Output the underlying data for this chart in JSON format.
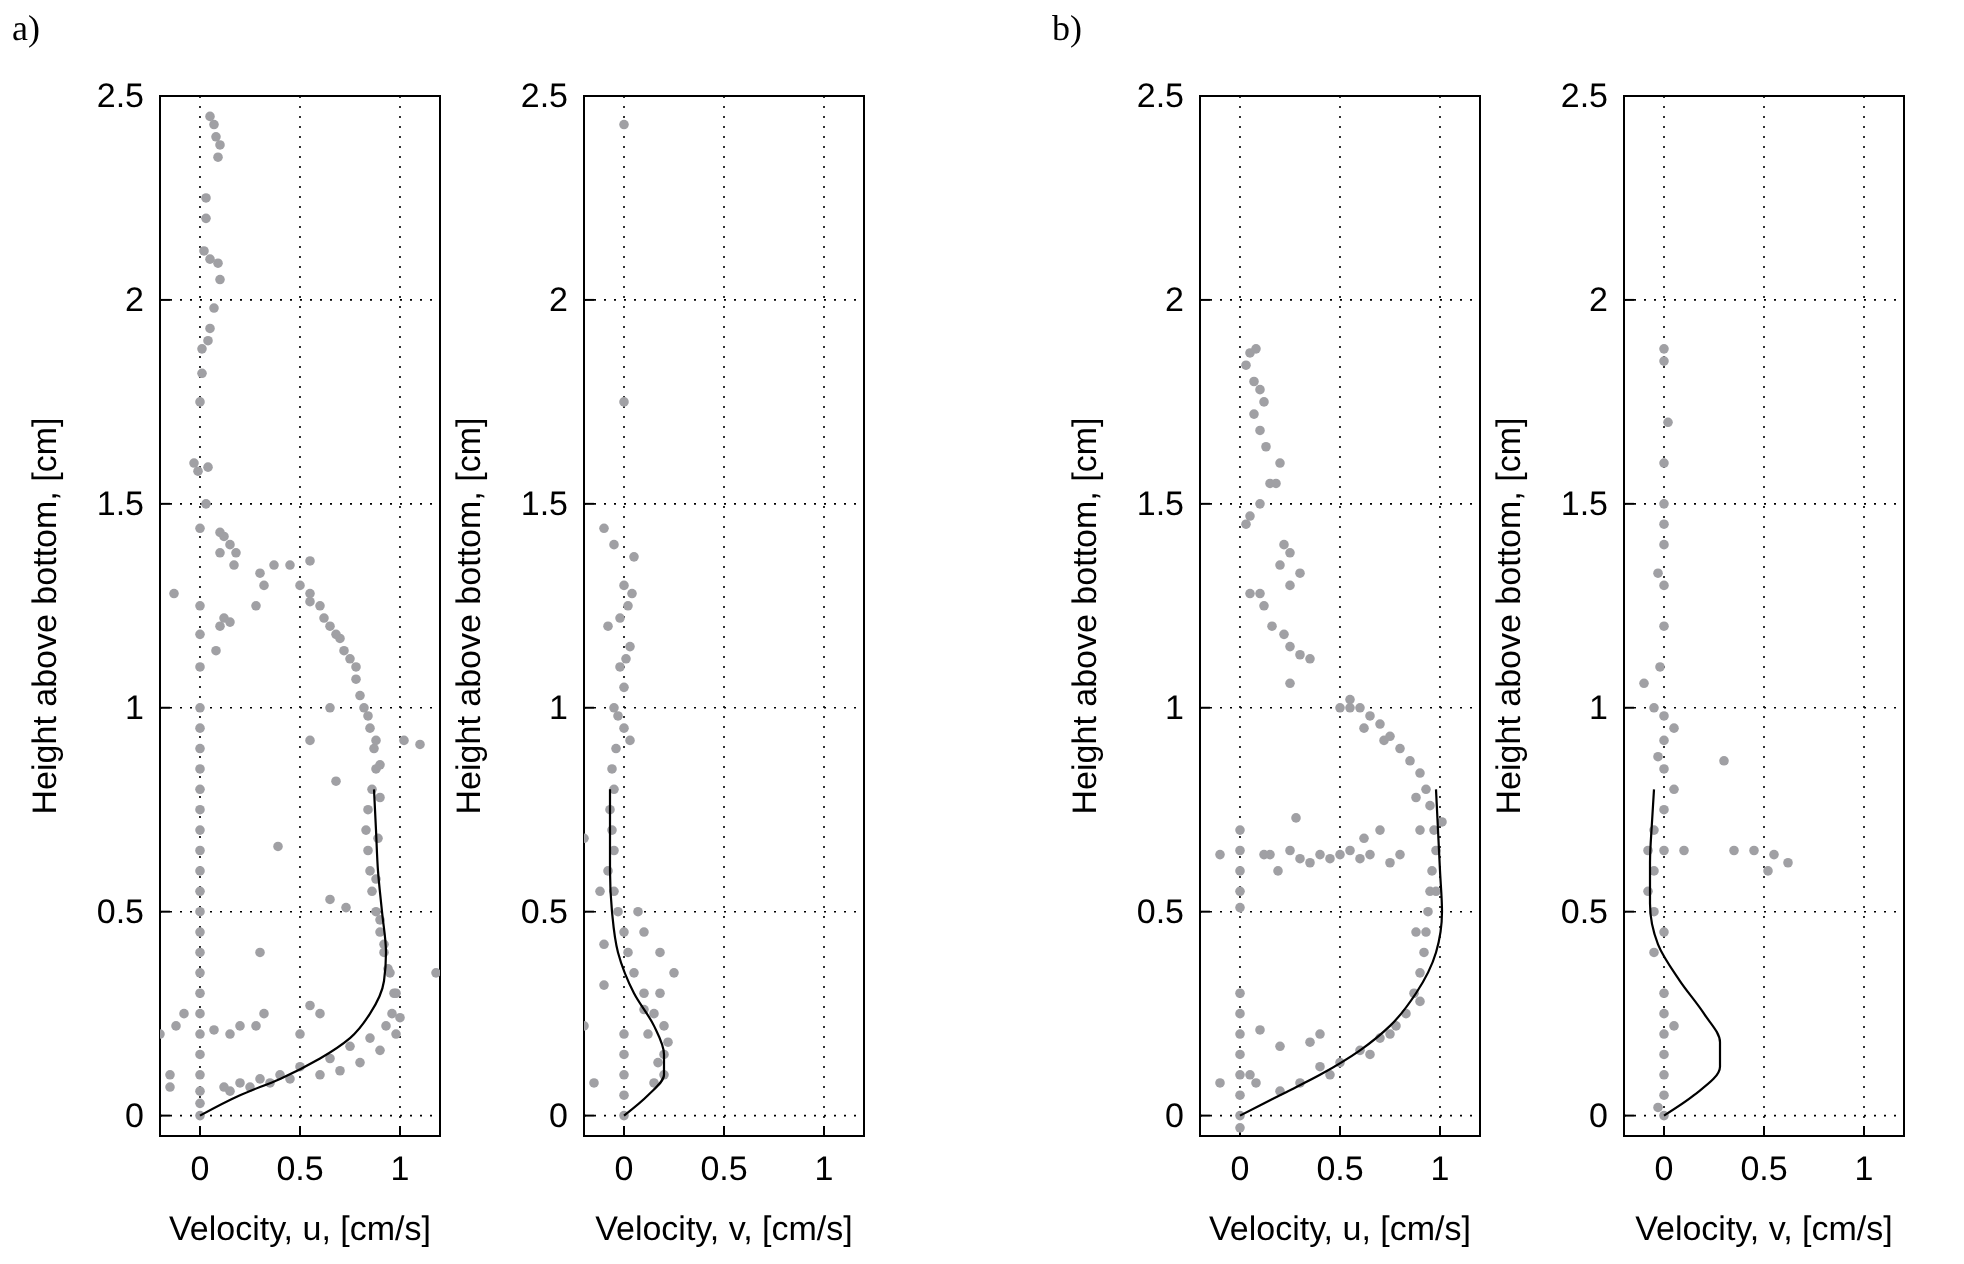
{
  "chart_data": [
    {
      "type": "scatter",
      "annotations": [
        "a)"
      ],
      "xlabel": "Velocity, u, [cm/s]",
      "ylabel": "Height above bottom, [cm]",
      "xlim": [
        -0.2,
        1.2
      ],
      "ylim": [
        -0.05,
        2.5
      ],
      "xticks": [
        0,
        0.5,
        1
      ],
      "yticks": [
        0,
        0.5,
        1,
        1.5,
        2,
        2.5
      ],
      "grid": true,
      "series": [
        {
          "type": "scatter",
          "marker": "circle",
          "color": "#a0a0a4",
          "x": [
            0,
            0,
            0,
            0,
            0,
            0,
            0,
            0,
            0,
            0,
            0,
            0,
            0,
            0,
            0,
            0,
            0,
            0,
            0,
            0,
            0,
            0,
            0,
            0,
            0,
            0.05,
            0.07,
            0.08,
            0.1,
            0.09,
            0.03,
            0.03,
            0.02,
            0.05,
            0.09,
            0.1,
            0.07,
            0.05,
            0.04,
            0.01,
            0.01,
            0,
            -0.03,
            -0.01,
            0.04,
            0.03,
            0,
            0.1,
            0.12,
            0.15,
            0.18,
            0.1,
            0.17,
            0.3,
            0.32,
            0.37,
            0.45,
            0.55,
            0.1,
            0.12,
            0.15,
            0.08,
            -0.13,
            0.28,
            0.5,
            0.55,
            0.6,
            0.65,
            0.7,
            0.75,
            0.78,
            0.82,
            0.85,
            0.87,
            0.88,
            0.86,
            0.84,
            0.83,
            0.84,
            0.85,
            0.86,
            0.88,
            0.9,
            0.92,
            0.95,
            0.97,
            0.96,
            0.93,
            0.85,
            0.75,
            0.65,
            0.5,
            0.4,
            0.3,
            0.2,
            0.12,
            0.55,
            0.62,
            0.68,
            0.72,
            0.78,
            0.8,
            0.84,
            0.88,
            0.9,
            0.9,
            0.89,
            0.88,
            0.9,
            0.92,
            0.94,
            0.98,
            1.0,
            0.98,
            0.9,
            0.8,
            0.7,
            0.6,
            0.45,
            0.35,
            0.25,
            0.15,
            1.02,
            1.1,
            1.18,
            0.55,
            0.68,
            0.65,
            0.39,
            0.65,
            0.73,
            0.5,
            0.3,
            0.32,
            0.28,
            0.55,
            0.6,
            0.2,
            0.15,
            -0.2,
            -0.15,
            -0.15,
            -0.12,
            -0.08,
            0.07
          ],
          "values": [
            0,
            0.03,
            0.06,
            0.1,
            0.15,
            0.2,
            0.25,
            0.3,
            0.35,
            0.4,
            0.45,
            0.5,
            0.55,
            0.6,
            0.65,
            0.7,
            0.75,
            0.8,
            0.85,
            0.9,
            0.95,
            1.0,
            1.1,
            1.18,
            1.25,
            2.45,
            2.43,
            2.4,
            2.38,
            2.35,
            2.25,
            2.2,
            2.12,
            2.1,
            2.09,
            2.05,
            1.98,
            1.93,
            1.9,
            1.88,
            1.82,
            1.75,
            1.6,
            1.58,
            1.59,
            1.5,
            1.44,
            1.43,
            1.42,
            1.4,
            1.38,
            1.38,
            1.35,
            1.33,
            1.3,
            1.35,
            1.35,
            1.36,
            1.2,
            1.22,
            1.21,
            1.14,
            1.28,
            1.25,
            1.3,
            1.28,
            1.25,
            1.2,
            1.17,
            1.12,
            1.07,
            1.0,
            0.95,
            0.9,
            0.85,
            0.8,
            0.75,
            0.7,
            0.65,
            0.6,
            0.55,
            0.5,
            0.45,
            0.4,
            0.35,
            0.3,
            0.25,
            0.22,
            0.19,
            0.17,
            0.14,
            0.12,
            0.1,
            0.09,
            0.08,
            0.07,
            1.26,
            1.22,
            1.18,
            1.14,
            1.1,
            1.03,
            0.98,
            0.92,
            0.86,
            0.78,
            0.68,
            0.58,
            0.48,
            0.42,
            0.36,
            0.3,
            0.24,
            0.2,
            0.16,
            0.13,
            0.11,
            0.1,
            0.09,
            0.08,
            0.07,
            0.06,
            0.92,
            0.91,
            0.35,
            0.92,
            0.82,
            1.0,
            0.66,
            0.53,
            0.51,
            0.2,
            0.4,
            0.25,
            0.22,
            0.27,
            0.25,
            0.22,
            0.2,
            0.2,
            0.1,
            0.07,
            0.22,
            0.25,
            0.21
          ]
        },
        {
          "type": "line",
          "marker": "none",
          "color": "#000000",
          "x": [
            0,
            0.2,
            0.4,
            0.6,
            0.75,
            0.85,
            0.92,
            0.93,
            0.91,
            0.89,
            0.88,
            0.87
          ],
          "values": [
            0,
            0.05,
            0.09,
            0.14,
            0.19,
            0.25,
            0.33,
            0.4,
            0.5,
            0.6,
            0.7,
            0.8
          ]
        }
      ]
    },
    {
      "type": "scatter",
      "xlabel": "Velocity, v, [cm/s]",
      "ylabel": "Height above bottom, [cm]",
      "xlim": [
        -0.2,
        1.2
      ],
      "ylim": [
        -0.05,
        2.5
      ],
      "xticks": [
        0,
        0.5,
        1
      ],
      "yticks": [
        0,
        0.5,
        1,
        1.5,
        2,
        2.5
      ],
      "grid": true,
      "series": [
        {
          "type": "scatter",
          "marker": "circle",
          "color": "#a0a0a4",
          "x": [
            0,
            0,
            -0.1,
            -0.05,
            0.05,
            0,
            0.02,
            -0.08,
            0.03,
            -0.02,
            0,
            -0.05,
            0,
            -0.04,
            -0.06,
            -0.05,
            -0.07,
            -0.06,
            -0.2,
            -0.05,
            -0.08,
            -0.12,
            -0.05,
            -0.03,
            0.07,
            0,
            -0.1,
            0.02,
            0.05,
            -0.1,
            0.1,
            0.18,
            0.15,
            0.2,
            0.22,
            0.2,
            0.2,
            0.15,
            0,
            0,
            0,
            0,
            0,
            -0.15,
            -0.2,
            0.25,
            0.18,
            0.1,
            0.04,
            -0.02,
            0.01,
            -0.03,
            0.03,
            0.1,
            0.12,
            0.17
          ],
          "values": [
            2.43,
            1.75,
            1.44,
            1.4,
            1.37,
            1.3,
            1.25,
            1.2,
            1.15,
            1.1,
            1.05,
            1.0,
            0.95,
            0.9,
            0.85,
            0.8,
            0.75,
            0.7,
            0.68,
            0.65,
            0.6,
            0.55,
            0.55,
            0.5,
            0.5,
            0.45,
            0.42,
            0.4,
            0.35,
            0.32,
            0.3,
            0.3,
            0.25,
            0.22,
            0.18,
            0.15,
            0.1,
            0.08,
            0.2,
            0.15,
            0.1,
            0.05,
            0,
            0.08,
            0.22,
            0.35,
            0.4,
            0.45,
            1.28,
            1.22,
            1.12,
            0.98,
            0.92,
            0.26,
            0.2,
            0.13
          ]
        },
        {
          "type": "line",
          "marker": "none",
          "color": "#000000",
          "x": [
            0,
            0.12,
            0.2,
            0.2,
            0.15,
            0.05,
            -0.03,
            -0.06,
            -0.07,
            -0.07,
            -0.07
          ],
          "values": [
            0,
            0.05,
            0.1,
            0.15,
            0.22,
            0.3,
            0.4,
            0.5,
            0.6,
            0.7,
            0.8
          ]
        }
      ]
    },
    {
      "type": "scatter",
      "annotations": [
        "b)"
      ],
      "xlabel": "Velocity, u, [cm/s]",
      "ylabel": "Height above bottom, [cm]",
      "xlim": [
        -0.2,
        1.2
      ],
      "ylim": [
        -0.05,
        2.5
      ],
      "xticks": [
        0,
        0.5,
        1
      ],
      "yticks": [
        0,
        0.5,
        1,
        1.5,
        2,
        2.5
      ],
      "grid": true,
      "series": [
        {
          "type": "scatter",
          "marker": "circle",
          "color": "#a0a0a4",
          "x": [
            0.05,
            0.08,
            0.03,
            0.07,
            0.1,
            0.12,
            0.07,
            0.1,
            0.13,
            0.2,
            0.15,
            0.1,
            0.05,
            0.03,
            0.18,
            0.22,
            0.25,
            0.2,
            0.3,
            0.25,
            0.1,
            0.05,
            0.12,
            0.16,
            0.22,
            0.25,
            0.3,
            0.35,
            0.25,
            0.5,
            0.55,
            0.6,
            0.65,
            0.7,
            0.75,
            0.8,
            0.85,
            0.9,
            0.93,
            0.95,
            0.97,
            0.98,
            0.96,
            0.95,
            0.94,
            0.93,
            0.92,
            0.9,
            0.87,
            0.83,
            0.78,
            0.7,
            0.6,
            0.5,
            0.4,
            0.3,
            0.2,
            0.55,
            0.62,
            0.72,
            0.88,
            0.9,
            1.01,
            0.98,
            0.88,
            0.9,
            0.75,
            0.65,
            0.45,
            0.15,
            0.25,
            0.3,
            0.35,
            0.4,
            0.45,
            0.5,
            0.55,
            0.6,
            0.65,
            0.28,
            0.19,
            0.12,
            0.75,
            0.8,
            0.62,
            0.7,
            -0.1,
            0,
            0,
            0,
            0,
            0,
            0,
            0,
            0,
            0,
            0,
            0,
            0,
            0,
            -0.1,
            0.05,
            0.08,
            0.2,
            0.35,
            0.4,
            0.1
          ],
          "values": [
            1.87,
            1.88,
            1.84,
            1.8,
            1.78,
            1.75,
            1.72,
            1.68,
            1.64,
            1.6,
            1.55,
            1.5,
            1.47,
            1.45,
            1.55,
            1.4,
            1.38,
            1.35,
            1.33,
            1.3,
            1.28,
            1.28,
            1.25,
            1.2,
            1.18,
            1.15,
            1.13,
            1.12,
            1.06,
            1.0,
            1.02,
            1.0,
            0.98,
            0.96,
            0.93,
            0.9,
            0.87,
            0.84,
            0.8,
            0.76,
            0.7,
            0.65,
            0.6,
            0.55,
            0.5,
            0.45,
            0.4,
            0.35,
            0.3,
            0.25,
            0.22,
            0.19,
            0.16,
            0.13,
            0.12,
            0.08,
            0.06,
            1.0,
            0.95,
            0.92,
            0.78,
            0.7,
            0.72,
            0.55,
            0.45,
            0.28,
            0.2,
            0.15,
            0.1,
            0.64,
            0.65,
            0.63,
            0.62,
            0.64,
            0.63,
            0.64,
            0.65,
            0.63,
            0.64,
            0.73,
            0.6,
            0.64,
            0.62,
            0.64,
            0.68,
            0.7,
            0.64,
            0.7,
            0.65,
            0.6,
            0.55,
            0.51,
            0.3,
            0.25,
            0.2,
            0.15,
            0.1,
            0.05,
            0,
            -0.03,
            0.08,
            0.1,
            0.08,
            0.17,
            0.18,
            0.2,
            0.21
          ]
        },
        {
          "type": "line",
          "marker": "none",
          "color": "#000000",
          "x": [
            0,
            0.2,
            0.4,
            0.6,
            0.75,
            0.88,
            0.98,
            1.01,
            1.0,
            0.99,
            0.98
          ],
          "values": [
            0,
            0.05,
            0.1,
            0.16,
            0.22,
            0.3,
            0.4,
            0.5,
            0.6,
            0.7,
            0.8
          ]
        }
      ]
    },
    {
      "type": "scatter",
      "xlabel": "Velocity, v, [cm/s]",
      "ylabel": "Height above bottom, [cm]",
      "xlim": [
        -0.2,
        1.2
      ],
      "ylim": [
        -0.05,
        2.5
      ],
      "xticks": [
        0,
        0.5,
        1
      ],
      "yticks": [
        0,
        0.5,
        1,
        1.5,
        2,
        2.5
      ],
      "grid": true,
      "series": [
        {
          "type": "scatter",
          "marker": "circle",
          "color": "#a0a0a4",
          "x": [
            0,
            0,
            0.02,
            0,
            0,
            0,
            0,
            -0.03,
            0,
            0,
            -0.02,
            -0.1,
            -0.05,
            0,
            0.05,
            0,
            -0.03,
            0,
            0.05,
            0,
            -0.05,
            -0.08,
            -0.05,
            -0.08,
            -0.05,
            0,
            0.1,
            0.3,
            0.35,
            0.45,
            0.55,
            0.62,
            0.52,
            0,
            0,
            0,
            0,
            0,
            0,
            0,
            -0.03,
            0.05,
            -0.05,
            0
          ],
          "values": [
            1.88,
            1.85,
            1.7,
            1.6,
            1.5,
            1.45,
            1.4,
            1.33,
            1.3,
            1.2,
            1.1,
            1.06,
            1.0,
            0.98,
            0.95,
            0.92,
            0.88,
            0.85,
            0.8,
            0.75,
            0.7,
            0.65,
            0.6,
            0.55,
            0.5,
            0.65,
            0.65,
            0.87,
            0.65,
            0.65,
            0.64,
            0.62,
            0.6,
            0.3,
            0.25,
            0.2,
            0.15,
            0.1,
            0.05,
            0,
            0.02,
            0.22,
            0.4,
            0.45
          ]
        },
        {
          "type": "line",
          "marker": "none",
          "color": "#000000",
          "x": [
            0,
            0.15,
            0.28,
            0.28,
            0.2,
            0.08,
            -0.03,
            -0.07,
            -0.07,
            -0.06,
            -0.05
          ],
          "values": [
            0,
            0.05,
            0.12,
            0.18,
            0.25,
            0.33,
            0.42,
            0.52,
            0.62,
            0.72,
            0.8
          ]
        }
      ]
    }
  ]
}
